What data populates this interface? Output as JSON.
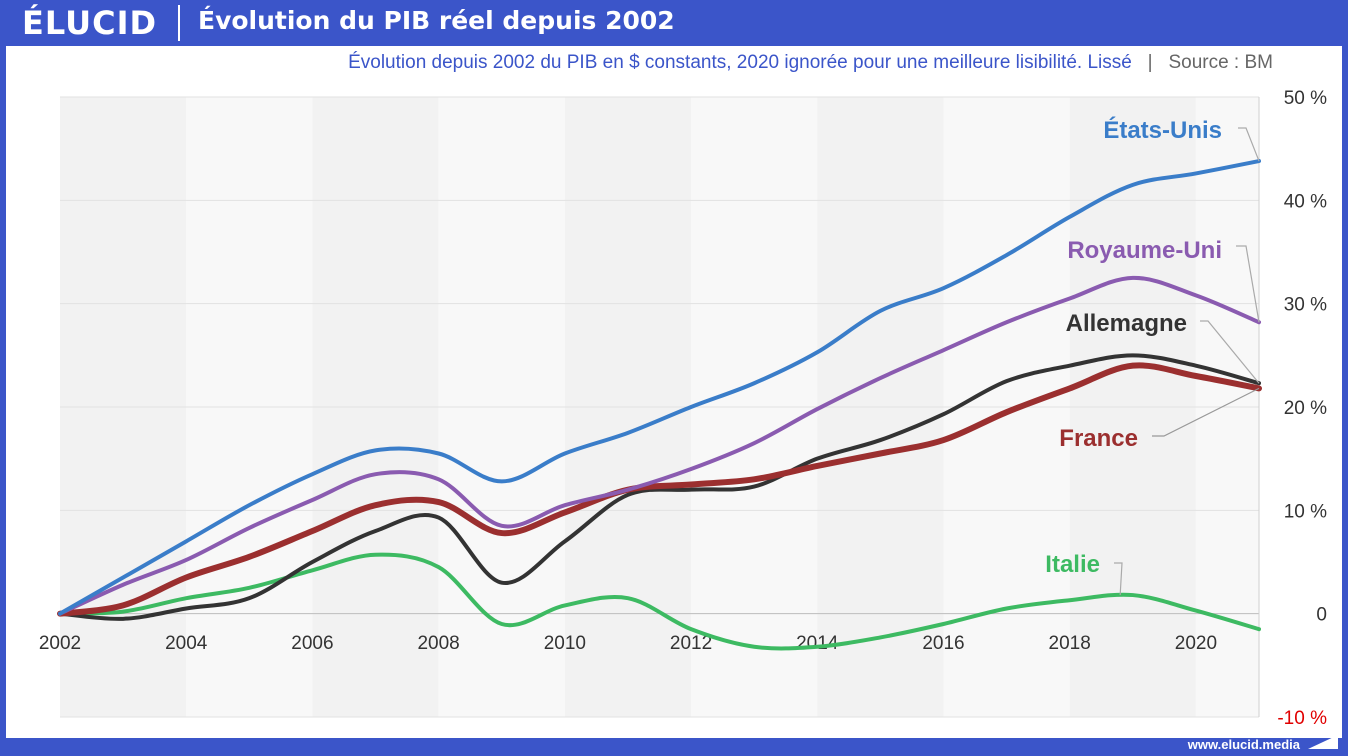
{
  "header": {
    "logo": "ÉLUCID",
    "title": "Évolution du PIB réel depuis 2002",
    "subtitle": "Évolution depuis 2002 du PIB en $ constants, 2020 ignorée pour une meilleure lisibilité. Lissé",
    "source": "Source : BM"
  },
  "footer": {
    "url": "www.elucid.media"
  },
  "colors": {
    "brand": "#3b55c9",
    "etats_unis": "#3a7dc9",
    "royaume_uni": "#8a5bb0",
    "allemagne": "#333333",
    "france": "#9b2f2f",
    "italie": "#3dba62",
    "negative_tick": "#e00000"
  },
  "chart_data": {
    "type": "line",
    "title": "Évolution du PIB réel depuis 2002",
    "xlabel": "",
    "ylabel": "",
    "xlim": [
      2002,
      2021
    ],
    "ylim": [
      -10,
      50
    ],
    "x_ticks": [
      "2002",
      "2004",
      "2006",
      "2008",
      "2010",
      "2012",
      "2014",
      "2016",
      "2018",
      "2020"
    ],
    "y_ticks": [
      "50 %",
      "40 %",
      "30 %",
      "20 %",
      "10 %",
      "0",
      "-10 %"
    ],
    "y_tick_values": [
      50,
      40,
      30,
      20,
      10,
      0,
      -10
    ],
    "grid": true,
    "legend": "inline labels on the right",
    "x": [
      2002,
      2003,
      2004,
      2005,
      2006,
      2007,
      2008,
      2009,
      2010,
      2011,
      2012,
      2013,
      2014,
      2015,
      2016,
      2017,
      2018,
      2019,
      2020,
      2021
    ],
    "series": [
      {
        "name": "États-Unis",
        "color_key": "etats_unis",
        "width": 4,
        "values": [
          0,
          3.5,
          7.0,
          10.5,
          13.5,
          15.8,
          15.5,
          12.8,
          15.5,
          17.5,
          20.0,
          22.3,
          25.3,
          29.3,
          31.5,
          34.7,
          38.4,
          41.5,
          42.6,
          43.8
        ]
      },
      {
        "name": "Royaume-Uni",
        "color_key": "royaume_uni",
        "width": 4,
        "values": [
          0,
          2.8,
          5.2,
          8.3,
          11.0,
          13.5,
          13.0,
          8.5,
          10.5,
          12.0,
          14.0,
          16.5,
          19.8,
          22.8,
          25.5,
          28.2,
          30.5,
          32.5,
          30.8,
          28.2
        ]
      },
      {
        "name": "Allemagne",
        "color_key": "allemagne",
        "width": 4,
        "values": [
          0,
          -0.5,
          0.5,
          1.5,
          5.0,
          8.0,
          9.3,
          3.0,
          7.0,
          11.5,
          12.0,
          12.3,
          15.0,
          16.8,
          19.3,
          22.5,
          24.0,
          25.0,
          24.0,
          22.3
        ]
      },
      {
        "name": "France",
        "color_key": "france",
        "width": 6,
        "values": [
          0,
          0.8,
          3.5,
          5.5,
          8.0,
          10.5,
          10.8,
          7.8,
          9.8,
          12.0,
          12.5,
          13.0,
          14.3,
          15.5,
          16.8,
          19.5,
          21.8,
          24.0,
          23.0,
          21.8
        ]
      },
      {
        "name": "Italie",
        "color_key": "italie",
        "width": 4,
        "values": [
          0,
          0.2,
          1.5,
          2.5,
          4.2,
          5.7,
          4.5,
          -1.0,
          0.8,
          1.5,
          -1.5,
          -3.2,
          -3.2,
          -2.3,
          -1.0,
          0.5,
          1.3,
          1.8,
          0.3,
          -1.5
        ]
      }
    ],
    "labels": [
      {
        "text": "États-Unis",
        "series": 0
      },
      {
        "text": "Royaume-Uni",
        "series": 1
      },
      {
        "text": "Allemagne",
        "series": 2
      },
      {
        "text": "France",
        "series": 3
      },
      {
        "text": "Italie",
        "series": 4
      }
    ]
  }
}
